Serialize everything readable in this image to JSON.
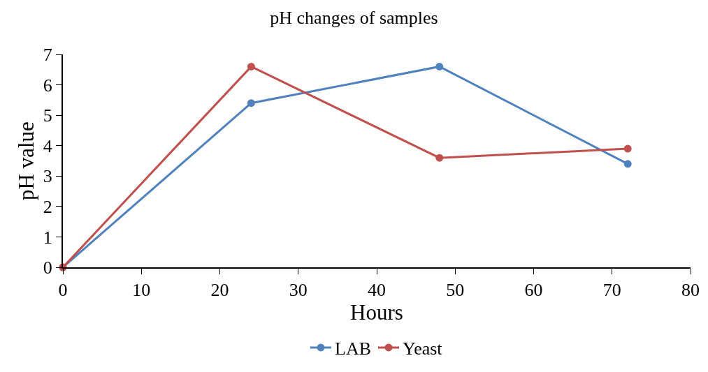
{
  "chart_data": {
    "type": "line",
    "title": "pH changes of samples",
    "xlabel": "Hours",
    "ylabel": "pH value",
    "xlim": [
      0,
      80
    ],
    "xticks": [
      0,
      10,
      20,
      30,
      40,
      50,
      60,
      70,
      80
    ],
    "ylim": [
      0,
      7
    ],
    "yticks": [
      0,
      1,
      2,
      3,
      4,
      5,
      6,
      7
    ],
    "legend": "bottom",
    "marker": "circle",
    "line_style": "solid",
    "series": [
      {
        "name": "LAB",
        "color": "#4f81bd",
        "x": [
          0,
          24,
          48,
          72
        ],
        "values": [
          0,
          5.4,
          6.6,
          3.4
        ]
      },
      {
        "name": "Yeast",
        "color": "#c0504d",
        "x": [
          0,
          24,
          48,
          72
        ],
        "values": [
          0,
          6.6,
          3.6,
          3.9
        ]
      }
    ]
  }
}
